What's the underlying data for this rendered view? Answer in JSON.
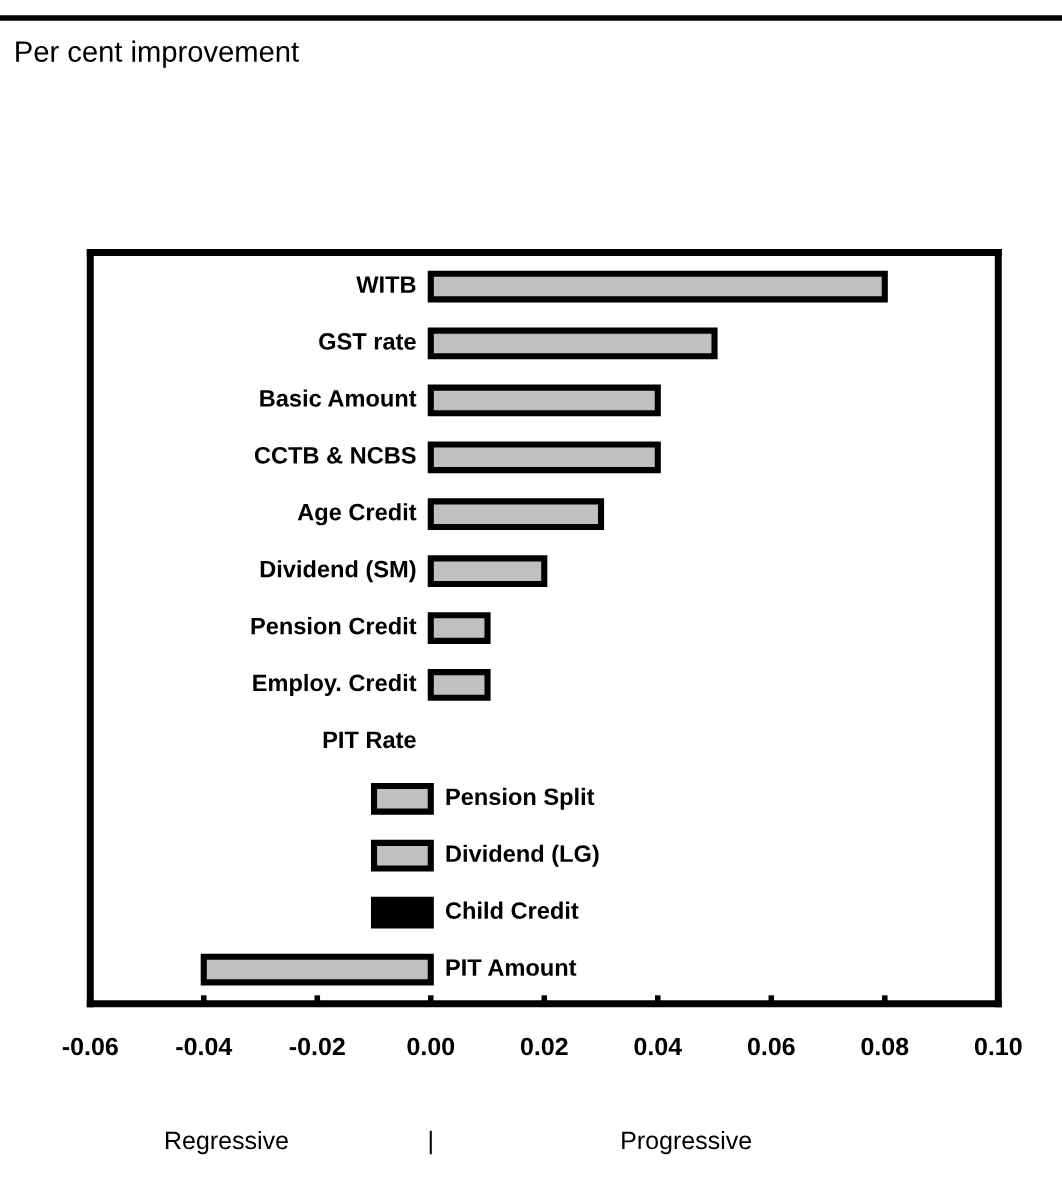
{
  "chart_data": {
    "type": "bar",
    "orientation": "horizontal",
    "title": "Per cent improvement",
    "categories": [
      "WITB",
      "GST rate",
      "Basic Amount",
      "CCTB & NCBS",
      "Age Credit",
      "Dividend (SM)",
      "Pension Credit",
      "Employ. Credit",
      "PIT Rate",
      "Pension Split",
      "Dividend (LG)",
      "Child Credit",
      "PIT Amount"
    ],
    "values": [
      0.08,
      0.05,
      0.04,
      0.04,
      0.03,
      0.02,
      0.01,
      0.01,
      0,
      -0.01,
      -0.01,
      -0.01,
      -0.04
    ],
    "colors": [
      "#c0c0c0",
      "#c0c0c0",
      "#c0c0c0",
      "#c0c0c0",
      "#c0c0c0",
      "#c0c0c0",
      "#c0c0c0",
      "#c0c0c0",
      "#c0c0c0",
      "#c0c0c0",
      "#c0c0c0",
      "#000000",
      "#c0c0c0"
    ],
    "xlim": [
      -0.06,
      0.1
    ],
    "xticks": [
      {
        "value": -0.06,
        "label": "-0.06"
      },
      {
        "value": -0.04,
        "label": "-0.04"
      },
      {
        "value": -0.02,
        "label": "-0.02"
      },
      {
        "value": 0,
        "label": "0.00"
      },
      {
        "value": 0.02,
        "label": "0.02"
      },
      {
        "value": 0.04,
        "label": "0.04"
      },
      {
        "value": 0.06,
        "label": "0.06"
      },
      {
        "value": 0.08,
        "label": "0.08"
      },
      {
        "value": 0.1,
        "label": "0.10"
      }
    ],
    "annotations": [
      "Regressive",
      "|",
      "Progressive"
    ],
    "grid": false,
    "legend": false
  }
}
